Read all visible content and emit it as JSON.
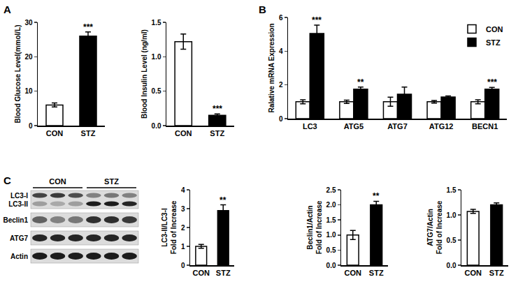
{
  "panels": [
    "A",
    "B",
    "C"
  ],
  "blot": {
    "groups": [
      "CON",
      "STZ"
    ],
    "rows": [
      "LC3-I",
      "LC3-II",
      "Beclin1",
      "ATG7",
      "Actin"
    ]
  },
  "chart_data": [
    {
      "type": "bar",
      "y_label": "Blood Glucose Level(mmol/L)",
      "categories": [
        "CON",
        "STZ"
      ],
      "values": [
        6,
        26
      ],
      "errors": [
        0.6,
        1.2
      ],
      "colors": [
        "#ffffff",
        "#000000"
      ],
      "annotations": [
        null,
        "***"
      ],
      "ylim": [
        0,
        30
      ],
      "yticks": [
        0,
        10,
        20,
        30
      ]
    },
    {
      "type": "bar",
      "y_label": "Blood Insulin Level (ng/ml)",
      "categories": [
        "CON",
        "STZ"
      ],
      "values": [
        1.22,
        0.15
      ],
      "errors": [
        0.11,
        0.02
      ],
      "colors": [
        "#ffffff",
        "#000000"
      ],
      "annotations": [
        null,
        "***"
      ],
      "ylim": [
        0,
        1.5
      ],
      "yticks": [
        {
          "value": 0,
          "label": "0.0"
        },
        {
          "value": 0.5,
          "label": "0.5"
        },
        {
          "value": 1,
          "label": "1.0"
        },
        {
          "value": 1.5,
          "label": "1.5"
        }
      ]
    },
    {
      "type": "bar",
      "y_label": "Ralative mRNA Expression",
      "categories": [
        "LC3",
        "ATG5",
        "ATG7",
        "ATG12",
        "BECN1"
      ],
      "series": [
        {
          "name": "CON",
          "color": "#ffffff",
          "values": [
            1,
            1,
            1,
            1,
            1
          ],
          "errors": [
            0.12,
            0.1,
            0.27,
            0.08,
            0.12
          ]
        },
        {
          "name": "STZ",
          "color": "#000000",
          "values": [
            5.05,
            1.75,
            1.45,
            1.28,
            1.75
          ],
          "errors": [
            0.5,
            0.12,
            0.42,
            0.06,
            0.1
          ],
          "annotations": [
            "***",
            "**",
            null,
            null,
            "***"
          ]
        }
      ],
      "ylim": [
        0,
        6
      ],
      "yticks": [
        0,
        2,
        4,
        6
      ],
      "legend": "top right"
    },
    {
      "type": "bar",
      "y_label": "LC3-II/LC3-I\nFold of Increase",
      "categories": [
        "CON",
        "STZ"
      ],
      "values": [
        1.0,
        2.9
      ],
      "errors": [
        0.1,
        0.3
      ],
      "colors": [
        "#ffffff",
        "#000000"
      ],
      "annotations": [
        null,
        "**"
      ],
      "ylim": [
        0,
        4
      ],
      "yticks": [
        0,
        1,
        2,
        3,
        4
      ]
    },
    {
      "type": "bar",
      "y_label": "Beclin1/Actin\nFold of Increase",
      "categories": [
        "CON",
        "STZ"
      ],
      "values": [
        1.0,
        2.0
      ],
      "errors": [
        0.15,
        0.12
      ],
      "colors": [
        "#ffffff",
        "#000000"
      ],
      "annotations": [
        null,
        "**"
      ],
      "ylim": [
        0,
        2.5
      ],
      "yticks": [
        {
          "value": 0,
          "label": "0.0"
        },
        {
          "value": 0.5,
          "label": "0.5"
        },
        {
          "value": 1,
          "label": "1.0"
        },
        {
          "value": 1.5,
          "label": "1.5"
        },
        {
          "value": 2,
          "label": "2.0"
        },
        {
          "value": 2.5,
          "label": "2.5"
        }
      ]
    },
    {
      "type": "bar",
      "y_label": "ATG7/Actin\nFold of Increase",
      "categories": [
        "CON",
        "STZ"
      ],
      "values": [
        1.07,
        1.2
      ],
      "errors": [
        0.04,
        0.04
      ],
      "colors": [
        "#ffffff",
        "#000000"
      ],
      "ylim": [
        0,
        1.5
      ],
      "yticks": [
        {
          "value": 0,
          "label": "0.0"
        },
        {
          "value": 0.5,
          "label": "0.5"
        },
        {
          "value": 1,
          "label": "1.0"
        },
        {
          "value": 1.5,
          "label": "1.5"
        }
      ]
    }
  ]
}
